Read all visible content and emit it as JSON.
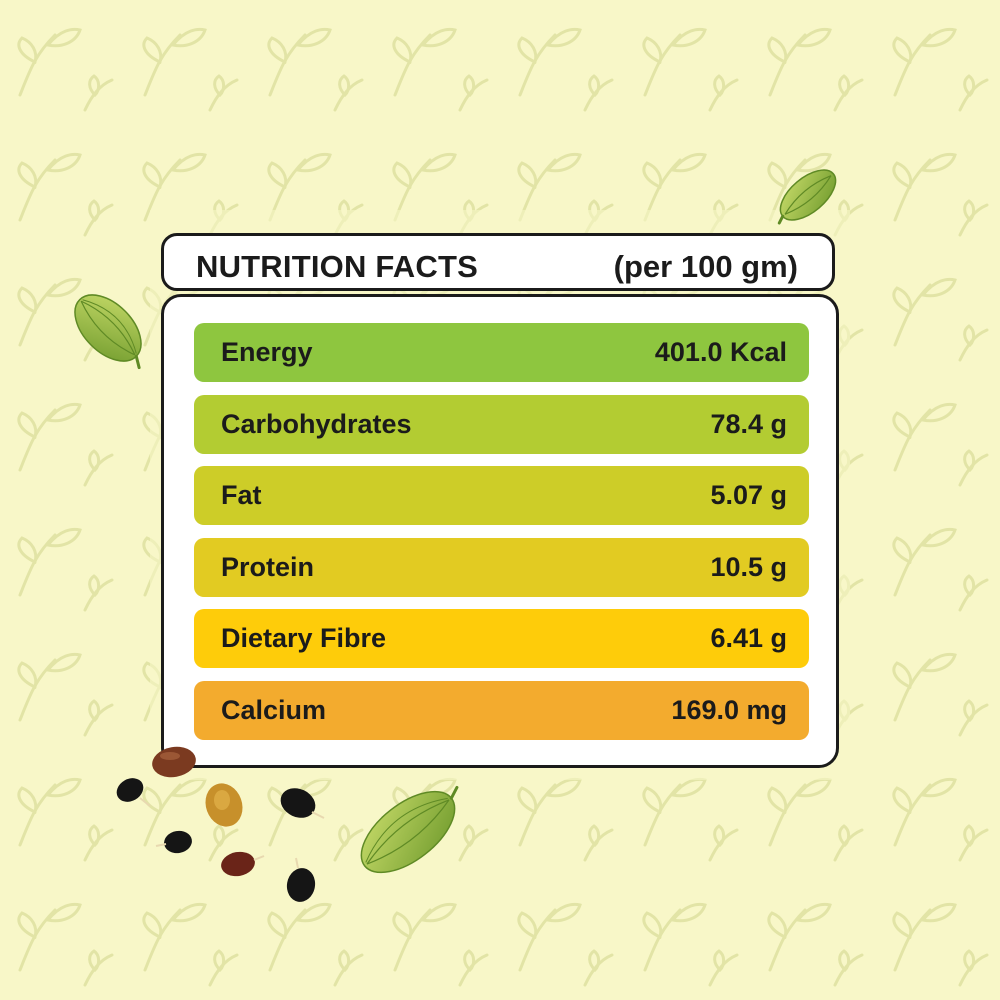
{
  "header": {
    "title": "NUTRITION FACTS",
    "unit": "(per 100 gm)"
  },
  "nutrients": [
    {
      "label": "Energy",
      "value": "401.0 Kcal",
      "color": "#8ec63f"
    },
    {
      "label": "Carbohydrates",
      "value": "78.4 g",
      "color": "#b3cc32"
    },
    {
      "label": "Fat",
      "value": "5.07 g",
      "color": "#cdcd28"
    },
    {
      "label": "Protein",
      "value": "10.5 g",
      "color": "#e2cb22"
    },
    {
      "label": "Dietary Fibre",
      "value": "6.41 g",
      "color": "#fecc0a"
    },
    {
      "label": "Calcium",
      "value": "169.0 mg",
      "color": "#f3ab2e"
    }
  ],
  "decorations": [
    "cardamom-pod-icon",
    "seed-icon",
    "leaf-icon"
  ],
  "colors": {
    "background": "#f8f7c8",
    "pattern": "#e2e4a6",
    "border": "#1b1b1b"
  }
}
